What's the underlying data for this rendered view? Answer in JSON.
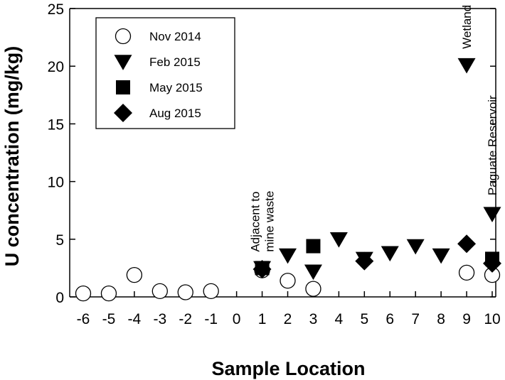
{
  "chart_data": {
    "type": "scatter",
    "title": "",
    "xlabel": "Sample Location",
    "ylabel": "U concentration (mg/kg)",
    "xlim": [
      -6,
      10
    ],
    "ylim": [
      0,
      25
    ],
    "xticks": [
      -6,
      -5,
      -4,
      -3,
      -2,
      -1,
      0,
      1,
      2,
      3,
      4,
      5,
      6,
      7,
      8,
      9,
      10
    ],
    "yticks": [
      0,
      5,
      10,
      15,
      20,
      25
    ],
    "grid": false,
    "legend_position": "top-left",
    "series": [
      {
        "name": "Nov 2014",
        "marker": "open-circle",
        "points": [
          {
            "x": -6,
            "y": 0.3
          },
          {
            "x": -5,
            "y": 0.3
          },
          {
            "x": -4,
            "y": 1.9
          },
          {
            "x": -3,
            "y": 0.5
          },
          {
            "x": -2,
            "y": 0.4
          },
          {
            "x": -1,
            "y": 0.5
          },
          {
            "x": 1,
            "y": 2.3
          },
          {
            "x": 2,
            "y": 1.4
          },
          {
            "x": 3,
            "y": 0.7
          },
          {
            "x": 9,
            "y": 2.1
          },
          {
            "x": 10,
            "y": 1.9
          }
        ]
      },
      {
        "name": "Feb 2015",
        "marker": "filled-triangle-down",
        "points": [
          {
            "x": 1,
            "y": 2.5
          },
          {
            "x": 2,
            "y": 3.6
          },
          {
            "x": 3,
            "y": 2.2
          },
          {
            "x": 4,
            "y": 5.0
          },
          {
            "x": 5,
            "y": 3.3
          },
          {
            "x": 6,
            "y": 3.8
          },
          {
            "x": 7,
            "y": 4.4
          },
          {
            "x": 8,
            "y": 3.6
          },
          {
            "x": 9,
            "y": 20.1
          },
          {
            "x": 10,
            "y": 7.2
          }
        ]
      },
      {
        "name": "May 2015",
        "marker": "filled-square",
        "points": [
          {
            "x": 1,
            "y": 2.5
          },
          {
            "x": 3,
            "y": 4.4
          },
          {
            "x": 10,
            "y": 3.3
          }
        ]
      },
      {
        "name": "Aug 2015",
        "marker": "filled-diamond",
        "points": [
          {
            "x": 1,
            "y": 2.4
          },
          {
            "x": 5,
            "y": 3.1
          },
          {
            "x": 9,
            "y": 4.6
          },
          {
            "x": 10,
            "y": 2.9
          }
        ]
      }
    ],
    "annotations": [
      {
        "text": "Adjacent to mine waste",
        "lines": [
          "Adjacent to",
          "mine waste"
        ],
        "x": 1,
        "y": 3.9
      },
      {
        "text": "Wetland",
        "lines": [
          "Wetland"
        ],
        "x": 9,
        "y": 21.5
      },
      {
        "text": "Paguate Reservoir",
        "lines": [
          "Paguate Reservoir"
        ],
        "x": 10,
        "y": 8.8
      }
    ]
  }
}
